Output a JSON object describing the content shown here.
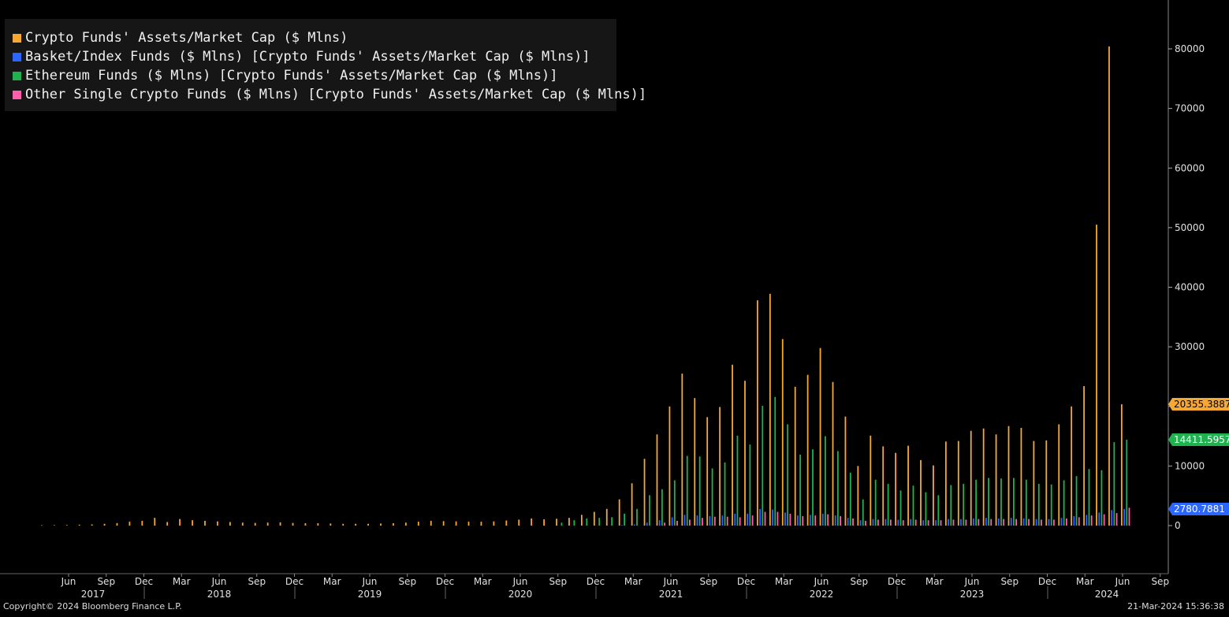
{
  "chart_data": {
    "type": "bar",
    "series": [
      {
        "name": "Crypto Funds' Assets/Market Cap ($ Mlns)",
        "color": "#f7a833",
        "values": [
          60,
          80,
          100,
          150,
          200,
          300,
          420,
          650,
          800,
          1300,
          600,
          1100,
          900,
          800,
          700,
          600,
          500,
          450,
          500,
          550,
          450,
          400,
          400,
          350,
          300,
          300,
          300,
          350,
          400,
          500,
          650,
          800,
          750,
          700,
          650,
          650,
          700,
          850,
          1000,
          1200,
          1050,
          1150,
          1300,
          1800,
          2300,
          2800,
          4400,
          7100,
          11200,
          15300,
          20000,
          25500,
          21400,
          18200,
          19900,
          27000,
          24300,
          37800,
          38900,
          31300,
          23300,
          25300,
          29800,
          24100,
          18300,
          10000,
          15100,
          13300,
          12200,
          13400,
          11000,
          10100,
          14100,
          14200,
          15900,
          16300,
          15300,
          16700,
          16400,
          14200,
          14300,
          17000,
          20000,
          23400,
          50500,
          80400,
          20355
        ]
      },
      {
        "name": "Basket/Index Funds ($ Mlns) [Crypto Funds' Assets/Market Cap ($ Mlns)]",
        "color": "#2a66ff",
        "values": [
          0,
          0,
          0,
          0,
          0,
          0,
          0,
          0,
          0,
          0,
          0,
          0,
          0,
          0,
          0,
          0,
          0,
          0,
          0,
          0,
          0,
          0,
          0,
          0,
          0,
          0,
          0,
          0,
          0,
          0,
          0,
          0,
          0,
          0,
          0,
          0,
          0,
          0,
          0,
          0,
          0,
          0,
          0,
          0,
          0,
          0,
          100,
          200,
          500,
          900,
          1400,
          1800,
          1700,
          1600,
          1700,
          2000,
          2000,
          2800,
          2700,
          2200,
          1700,
          1800,
          2000,
          1700,
          1300,
          900,
          1100,
          1100,
          1000,
          1100,
          900,
          900,
          1100,
          1100,
          1200,
          1300,
          1200,
          1300,
          1200,
          1100,
          1100,
          1300,
          1600,
          1800,
          2200,
          2600,
          2781
        ]
      },
      {
        "name": "Ethereum Funds ($ Mlns) [Crypto Funds' Assets/Market Cap ($ Mlns)]",
        "color": "#1fb24f",
        "values": [
          0,
          0,
          0,
          0,
          0,
          0,
          0,
          0,
          0,
          0,
          0,
          0,
          0,
          0,
          0,
          0,
          0,
          0,
          0,
          0,
          0,
          0,
          0,
          0,
          0,
          0,
          0,
          0,
          0,
          0,
          0,
          0,
          0,
          0,
          0,
          0,
          0,
          0,
          0,
          0,
          0,
          500,
          900,
          1200,
          1300,
          1400,
          2000,
          2800,
          5100,
          6100,
          7600,
          11700,
          11600,
          9600,
          10600,
          15100,
          13600,
          20100,
          21600,
          17000,
          11900,
          12800,
          15000,
          12500,
          8900,
          4400,
          7700,
          7000,
          5900,
          6700,
          5600,
          5100,
          6800,
          7000,
          7700,
          8000,
          7900,
          8000,
          7700,
          7000,
          6900,
          7600,
          8300,
          9500,
          9300,
          14000,
          14412
        ]
      },
      {
        "name": "Other Single Crypto Funds ($ Mlns) [Crypto Funds' Assets/Market Cap ($ Mlns)]",
        "color": "#ff5faa",
        "values": [
          0,
          0,
          0,
          0,
          0,
          0,
          0,
          0,
          0,
          0,
          0,
          0,
          0,
          0,
          0,
          0,
          0,
          0,
          0,
          0,
          0,
          0,
          0,
          0,
          0,
          0,
          0,
          0,
          0,
          0,
          0,
          0,
          0,
          0,
          0,
          0,
          0,
          0,
          0,
          0,
          0,
          0,
          0,
          0,
          0,
          0,
          0,
          0,
          0,
          500,
          800,
          1000,
          1300,
          1500,
          1500,
          1400,
          1700,
          2300,
          2300,
          2000,
          1600,
          1700,
          1900,
          1600,
          1200,
          800,
          1000,
          1000,
          900,
          1000,
          900,
          900,
          1000,
          1000,
          1100,
          1100,
          1100,
          1100,
          1100,
          1000,
          1000,
          1200,
          1400,
          1700,
          1900,
          2100,
          3000
        ]
      }
    ],
    "y_ticks": [
      "0",
      "10000",
      "20000",
      "30000",
      "40000",
      "50000",
      "60000",
      "70000",
      "80000"
    ],
    "ylim": [
      -8000,
      88000
    ],
    "x_month_ticks": [
      "Jun",
      "Sep",
      "Dec",
      "Mar",
      "Jun",
      "Sep",
      "Dec",
      "Mar",
      "Jun",
      "Sep",
      "Dec",
      "Mar",
      "Jun",
      "Sep",
      "Dec",
      "Mar",
      "Jun",
      "Sep",
      "Dec",
      "Mar",
      "Jun",
      "Sep",
      "Dec",
      "Mar",
      "Jun",
      "Sep",
      "Dec",
      "Mar",
      "Jun",
      "Sep"
    ],
    "x_year_labels": [
      "2017",
      "2018",
      "2019",
      "2020",
      "2021",
      "2022",
      "2023",
      "2024"
    ],
    "last_value_labels": [
      {
        "text": "20355.3887",
        "color": "#f7a833"
      },
      {
        "text": "14411.5957",
        "color": "#1fb24f"
      },
      {
        "text": "2780.7881",
        "color": "#2a66ff"
      }
    ]
  },
  "legend": [
    {
      "label": "Crypto Funds' Assets/Market Cap ($ Mlns)",
      "color": "#f7a833"
    },
    {
      "label": "Basket/Index Funds ($ Mlns) [Crypto Funds' Assets/Market Cap ($ Mlns)]",
      "color": "#2a66ff"
    },
    {
      "label": "Ethereum Funds ($ Mlns) [Crypto Funds' Assets/Market Cap ($ Mlns)]",
      "color": "#1fb24f"
    },
    {
      "label": "Other Single Crypto Funds ($ Mlns) [Crypto Funds' Assets/Market Cap ($ Mlns)]",
      "color": "#ff5faa"
    }
  ],
  "footer": {
    "copyright": "Copyright© 2024 Bloomberg Finance L.P.",
    "timestamp": "21-Mar-2024 15:36:38"
  }
}
